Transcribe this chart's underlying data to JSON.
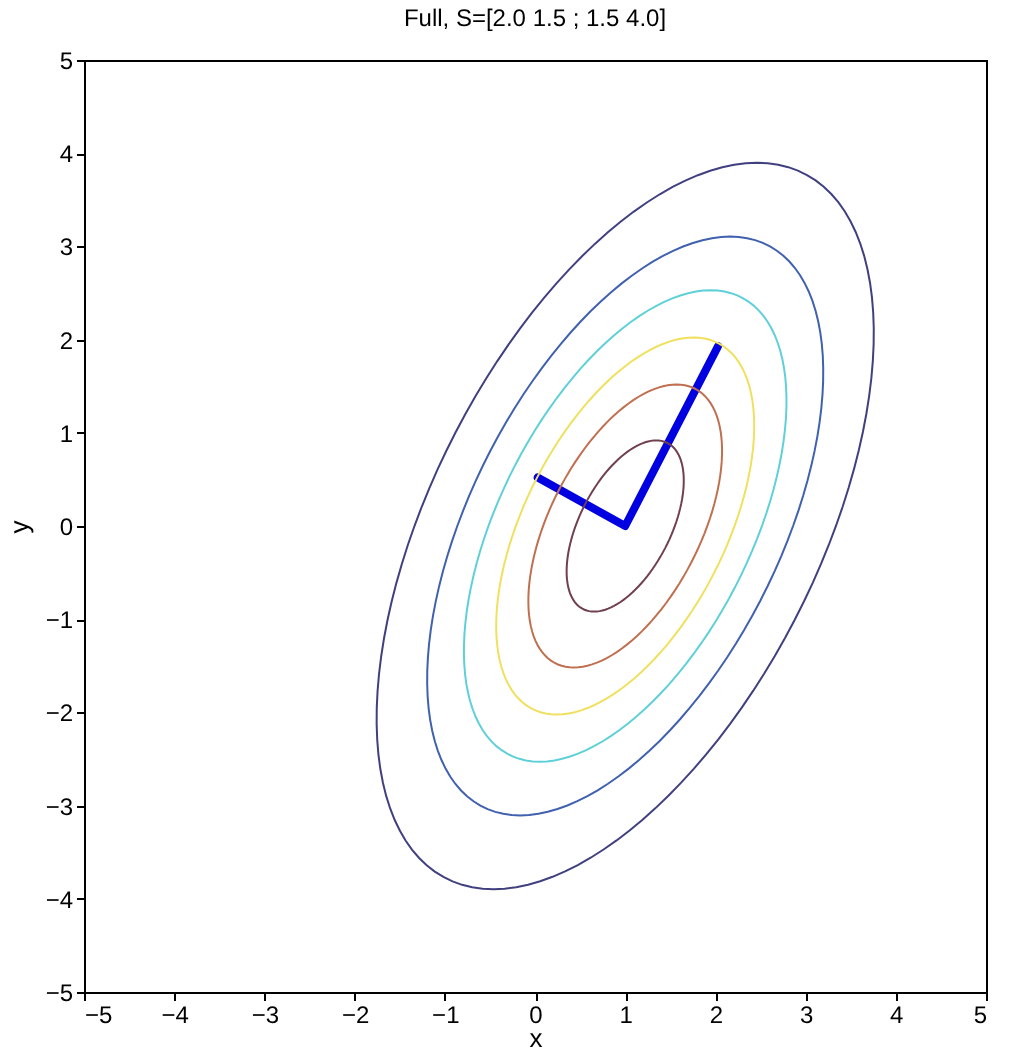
{
  "chart_data": {
    "type": "line",
    "title": "Full, S=[2.0 1.5 ; 1.5  4.0]",
    "xlabel": "x",
    "ylabel": "y",
    "xlim": [
      -5,
      5
    ],
    "ylim": [
      -5,
      5
    ],
    "xticks": [
      -5,
      -4,
      -3,
      -2,
      -1,
      0,
      1,
      2,
      3,
      4,
      5
    ],
    "yticks": [
      -5,
      -4,
      -3,
      -2,
      -1,
      0,
      1,
      2,
      3,
      4,
      5
    ],
    "grid": false,
    "legend": false,
    "series": [
      {
        "color": "#0000e0",
        "x": [
          0.03,
          1,
          2.03
        ],
        "values": [
          0.52,
          0,
          1.93
        ]
      }
    ]
  }
}
